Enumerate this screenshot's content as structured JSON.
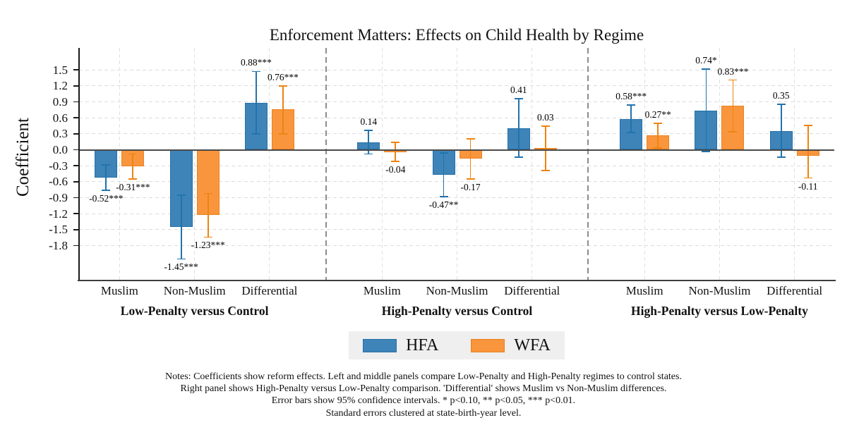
{
  "chart_data": {
    "type": "bar",
    "title": "Enforcement Matters: Effects on Child Health by Regime",
    "ylabel": "Coefficient",
    "ylim": [
      -2.44,
      1.91
    ],
    "grid": true,
    "legend_position": "bottom",
    "series_names": [
      "HFA",
      "WFA"
    ],
    "series_colors": {
      "HFA": {
        "fill": "#3E84B8",
        "edge": "#2470A8",
        "error": "#2173AD"
      },
      "WFA": {
        "fill": "#F9953D",
        "edge": "#EA8220",
        "error": "#ED850F"
      }
    },
    "y_ticks": [
      {
        "value": 1.5,
        "label": "1.5"
      },
      {
        "value": 1.2,
        "label": "1.2"
      },
      {
        "value": 0.9,
        "label": "0.9"
      },
      {
        "value": 0.6,
        "label": "0.6"
      },
      {
        "value": 0.3,
        "label": "0.3"
      },
      {
        "value": 0.0,
        "label": "0.0"
      },
      {
        "value": -0.3,
        "label": "-0.3"
      },
      {
        "value": -0.6,
        "label": "-0.6"
      },
      {
        "value": -0.9,
        "label": "-0.9"
      },
      {
        "value": -1.2,
        "label": "-1.2"
      },
      {
        "value": -1.5,
        "label": "-1.5"
      },
      {
        "value": -1.8,
        "label": "-1.8"
      }
    ],
    "panels": [
      {
        "title": "Low-Penalty versus Control",
        "groups": [
          {
            "category": "Muslim",
            "bars": [
              {
                "series": "HFA",
                "value": -0.52,
                "label": "-0.52***",
                "ci": [
                  -0.76,
                  -0.28
                ]
              },
              {
                "series": "WFA",
                "value": -0.31,
                "label": "-0.31***",
                "ci": [
                  -0.55,
                  -0.08
                ]
              }
            ]
          },
          {
            "category": "Non-Muslim",
            "bars": [
              {
                "series": "HFA",
                "value": -1.45,
                "label": "-1.45***",
                "ci": [
                  -2.05,
                  -0.85
                ]
              },
              {
                "series": "WFA",
                "value": -1.23,
                "label": "-1.23***",
                "ci": [
                  -1.64,
                  -0.82
                ]
              }
            ]
          },
          {
            "category": "Differential",
            "bars": [
              {
                "series": "HFA",
                "value": 0.88,
                "label": "0.88***",
                "ci": [
                  0.3,
                  1.47
                ]
              },
              {
                "series": "WFA",
                "value": 0.76,
                "label": "0.76***",
                "ci": [
                  0.3,
                  1.2
                ]
              }
            ]
          }
        ]
      },
      {
        "title": "High-Penalty versus Control",
        "groups": [
          {
            "category": "Muslim",
            "bars": [
              {
                "series": "HFA",
                "value": 0.14,
                "label": "0.14",
                "ci": [
                  -0.08,
                  0.36
                ]
              },
              {
                "series": "WFA",
                "value": -0.04,
                "label": "-0.04",
                "ci": [
                  -0.22,
                  0.14
                ]
              }
            ]
          },
          {
            "category": "Non-Muslim",
            "bars": [
              {
                "series": "HFA",
                "value": -0.47,
                "label": "-0.47**",
                "ci": [
                  -0.88,
                  -0.06
                ]
              },
              {
                "series": "WFA",
                "value": -0.17,
                "label": "-0.17",
                "ci": [
                  -0.55,
                  0.21
                ]
              }
            ]
          },
          {
            "category": "Differential",
            "bars": [
              {
                "series": "HFA",
                "value": 0.41,
                "label": "0.41",
                "ci": [
                  -0.14,
                  0.96
                ]
              },
              {
                "series": "WFA",
                "value": 0.03,
                "label": "0.03",
                "ci": [
                  -0.39,
                  0.44
                ]
              }
            ]
          }
        ]
      },
      {
        "title": "High-Penalty versus Low-Penalty",
        "groups": [
          {
            "category": "Muslim",
            "bars": [
              {
                "series": "HFA",
                "value": 0.58,
                "label": "0.58***",
                "ci": [
                  0.32,
                  0.84
                ]
              },
              {
                "series": "WFA",
                "value": 0.27,
                "label": "0.27**",
                "ci": [
                  0.03,
                  0.5
                ]
              }
            ]
          },
          {
            "category": "Non-Muslim",
            "bars": [
              {
                "series": "HFA",
                "value": 0.74,
                "label": "0.74*",
                "ci": [
                  -0.03,
                  1.52
                ]
              },
              {
                "series": "WFA",
                "value": 0.83,
                "label": "0.83***",
                "ci": [
                  0.34,
                  1.31
                ]
              }
            ]
          },
          {
            "category": "Differential",
            "bars": [
              {
                "series": "HFA",
                "value": 0.35,
                "label": "0.35",
                "ci": [
                  -0.14,
                  0.85
                ]
              },
              {
                "series": "WFA",
                "value": -0.11,
                "label": "-0.11",
                "ci": [
                  -0.53,
                  0.46
                ]
              }
            ]
          }
        ]
      }
    ],
    "legend": [
      {
        "label": "HFA",
        "fill": "#3E84B8",
        "edge": "#2470A8"
      },
      {
        "label": "WFA",
        "fill": "#F9953D",
        "edge": "#EA8220"
      }
    ],
    "notes": [
      "Notes: Coefficients show reform effects. Left and middle panels compare Low-Penalty and High-Penalty regimes to control states.",
      "Right panel shows High-Penalty versus Low-Penalty comparison. 'Differential' shows Muslim vs Non-Muslim differences.",
      "Error bars show 95% confidence intervals. * p<0.10, ** p<0.05, *** p<0.01.",
      "Standard errors clustered at state-birth-year level."
    ]
  }
}
